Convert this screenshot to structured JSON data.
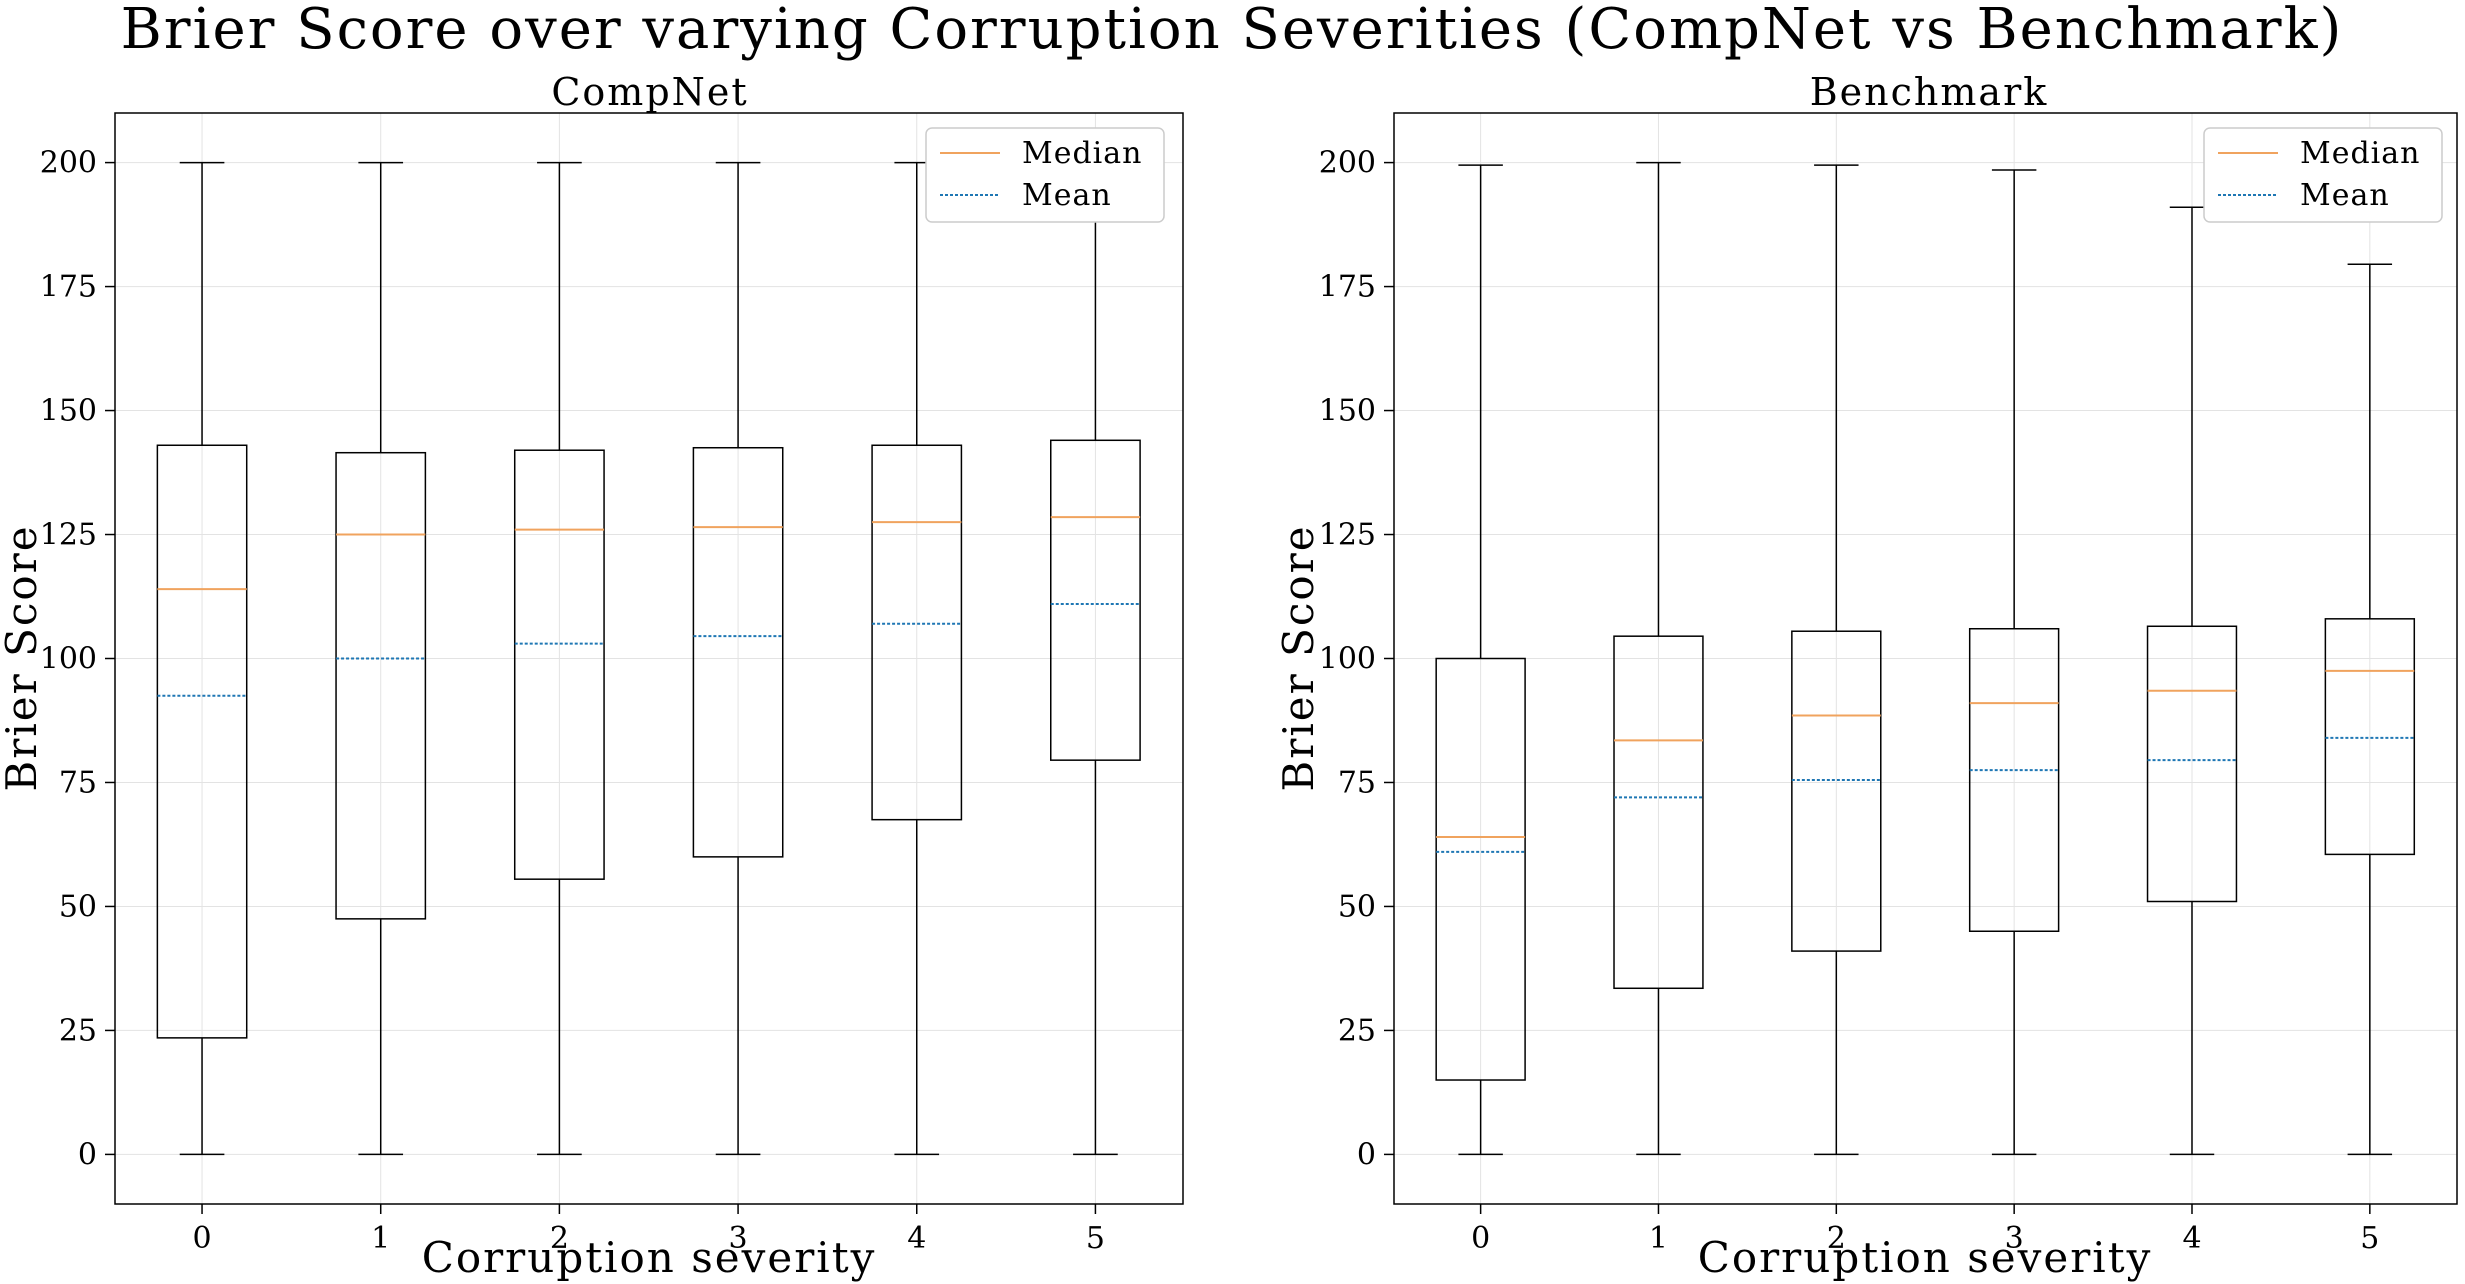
{
  "suptitle": "Brier Score over varying Corruption Severities (CompNet vs Benchmark)",
  "chart_data": [
    {
      "type": "box",
      "title": "CompNet",
      "xlabel": "Corruption severity",
      "ylabel": "Brier Score",
      "categories": [
        "0",
        "1",
        "2",
        "3",
        "4",
        "5"
      ],
      "ylim": [
        -10,
        210
      ],
      "yticks": [
        0,
        25,
        50,
        75,
        100,
        125,
        150,
        175,
        200
      ],
      "grid": true,
      "legend_position": "top-right",
      "legend": [
        {
          "label": "Median",
          "style": "solid",
          "color": "#f0a35e"
        },
        {
          "label": "Mean",
          "style": "dashed",
          "color": "#1f77b4"
        }
      ],
      "boxes": [
        {
          "whisker_low": 0,
          "q1": 23.5,
          "median": 114,
          "mean": 92.5,
          "q3": 143,
          "whisker_high": 200
        },
        {
          "whisker_low": 0,
          "q1": 47.5,
          "median": 125,
          "mean": 100,
          "q3": 141.5,
          "whisker_high": 200
        },
        {
          "whisker_low": 0,
          "q1": 55.5,
          "median": 126,
          "mean": 103,
          "q3": 142,
          "whisker_high": 200
        },
        {
          "whisker_low": 0,
          "q1": 60,
          "median": 126.5,
          "mean": 104.5,
          "q3": 142.5,
          "whisker_high": 200
        },
        {
          "whisker_low": 0,
          "q1": 67.5,
          "median": 127.5,
          "mean": 107,
          "q3": 143,
          "whisker_high": 200
        },
        {
          "whisker_low": 0,
          "q1": 79.5,
          "median": 128.5,
          "mean": 111,
          "q3": 144,
          "whisker_high": 200
        }
      ]
    },
    {
      "type": "box",
      "title": "Benchmark",
      "xlabel": "Corruption severity",
      "ylabel": "Brier Score",
      "categories": [
        "0",
        "1",
        "2",
        "3",
        "4",
        "5"
      ],
      "ylim": [
        -10,
        210
      ],
      "yticks": [
        0,
        25,
        50,
        75,
        100,
        125,
        150,
        175,
        200
      ],
      "grid": true,
      "legend_position": "top-right",
      "legend": [
        {
          "label": "Median",
          "style": "solid",
          "color": "#f0a35e"
        },
        {
          "label": "Mean",
          "style": "dashed",
          "color": "#1f77b4"
        }
      ],
      "boxes": [
        {
          "whisker_low": 0,
          "q1": 15,
          "median": 64,
          "mean": 61,
          "q3": 100,
          "whisker_high": 199.5
        },
        {
          "whisker_low": 0,
          "q1": 33.5,
          "median": 83.5,
          "mean": 72,
          "q3": 104.5,
          "whisker_high": 200
        },
        {
          "whisker_low": 0,
          "q1": 41,
          "median": 88.5,
          "mean": 75.5,
          "q3": 105.5,
          "whisker_high": 199.5
        },
        {
          "whisker_low": 0,
          "q1": 45,
          "median": 91,
          "mean": 77.5,
          "q3": 106,
          "whisker_high": 198.5
        },
        {
          "whisker_low": 0,
          "q1": 51,
          "median": 93.5,
          "mean": 79.5,
          "q3": 106.5,
          "whisker_high": 191
        },
        {
          "whisker_low": 0,
          "q1": 60.5,
          "median": 97.5,
          "mean": 84,
          "q3": 108,
          "whisker_high": 179.5
        }
      ]
    }
  ]
}
